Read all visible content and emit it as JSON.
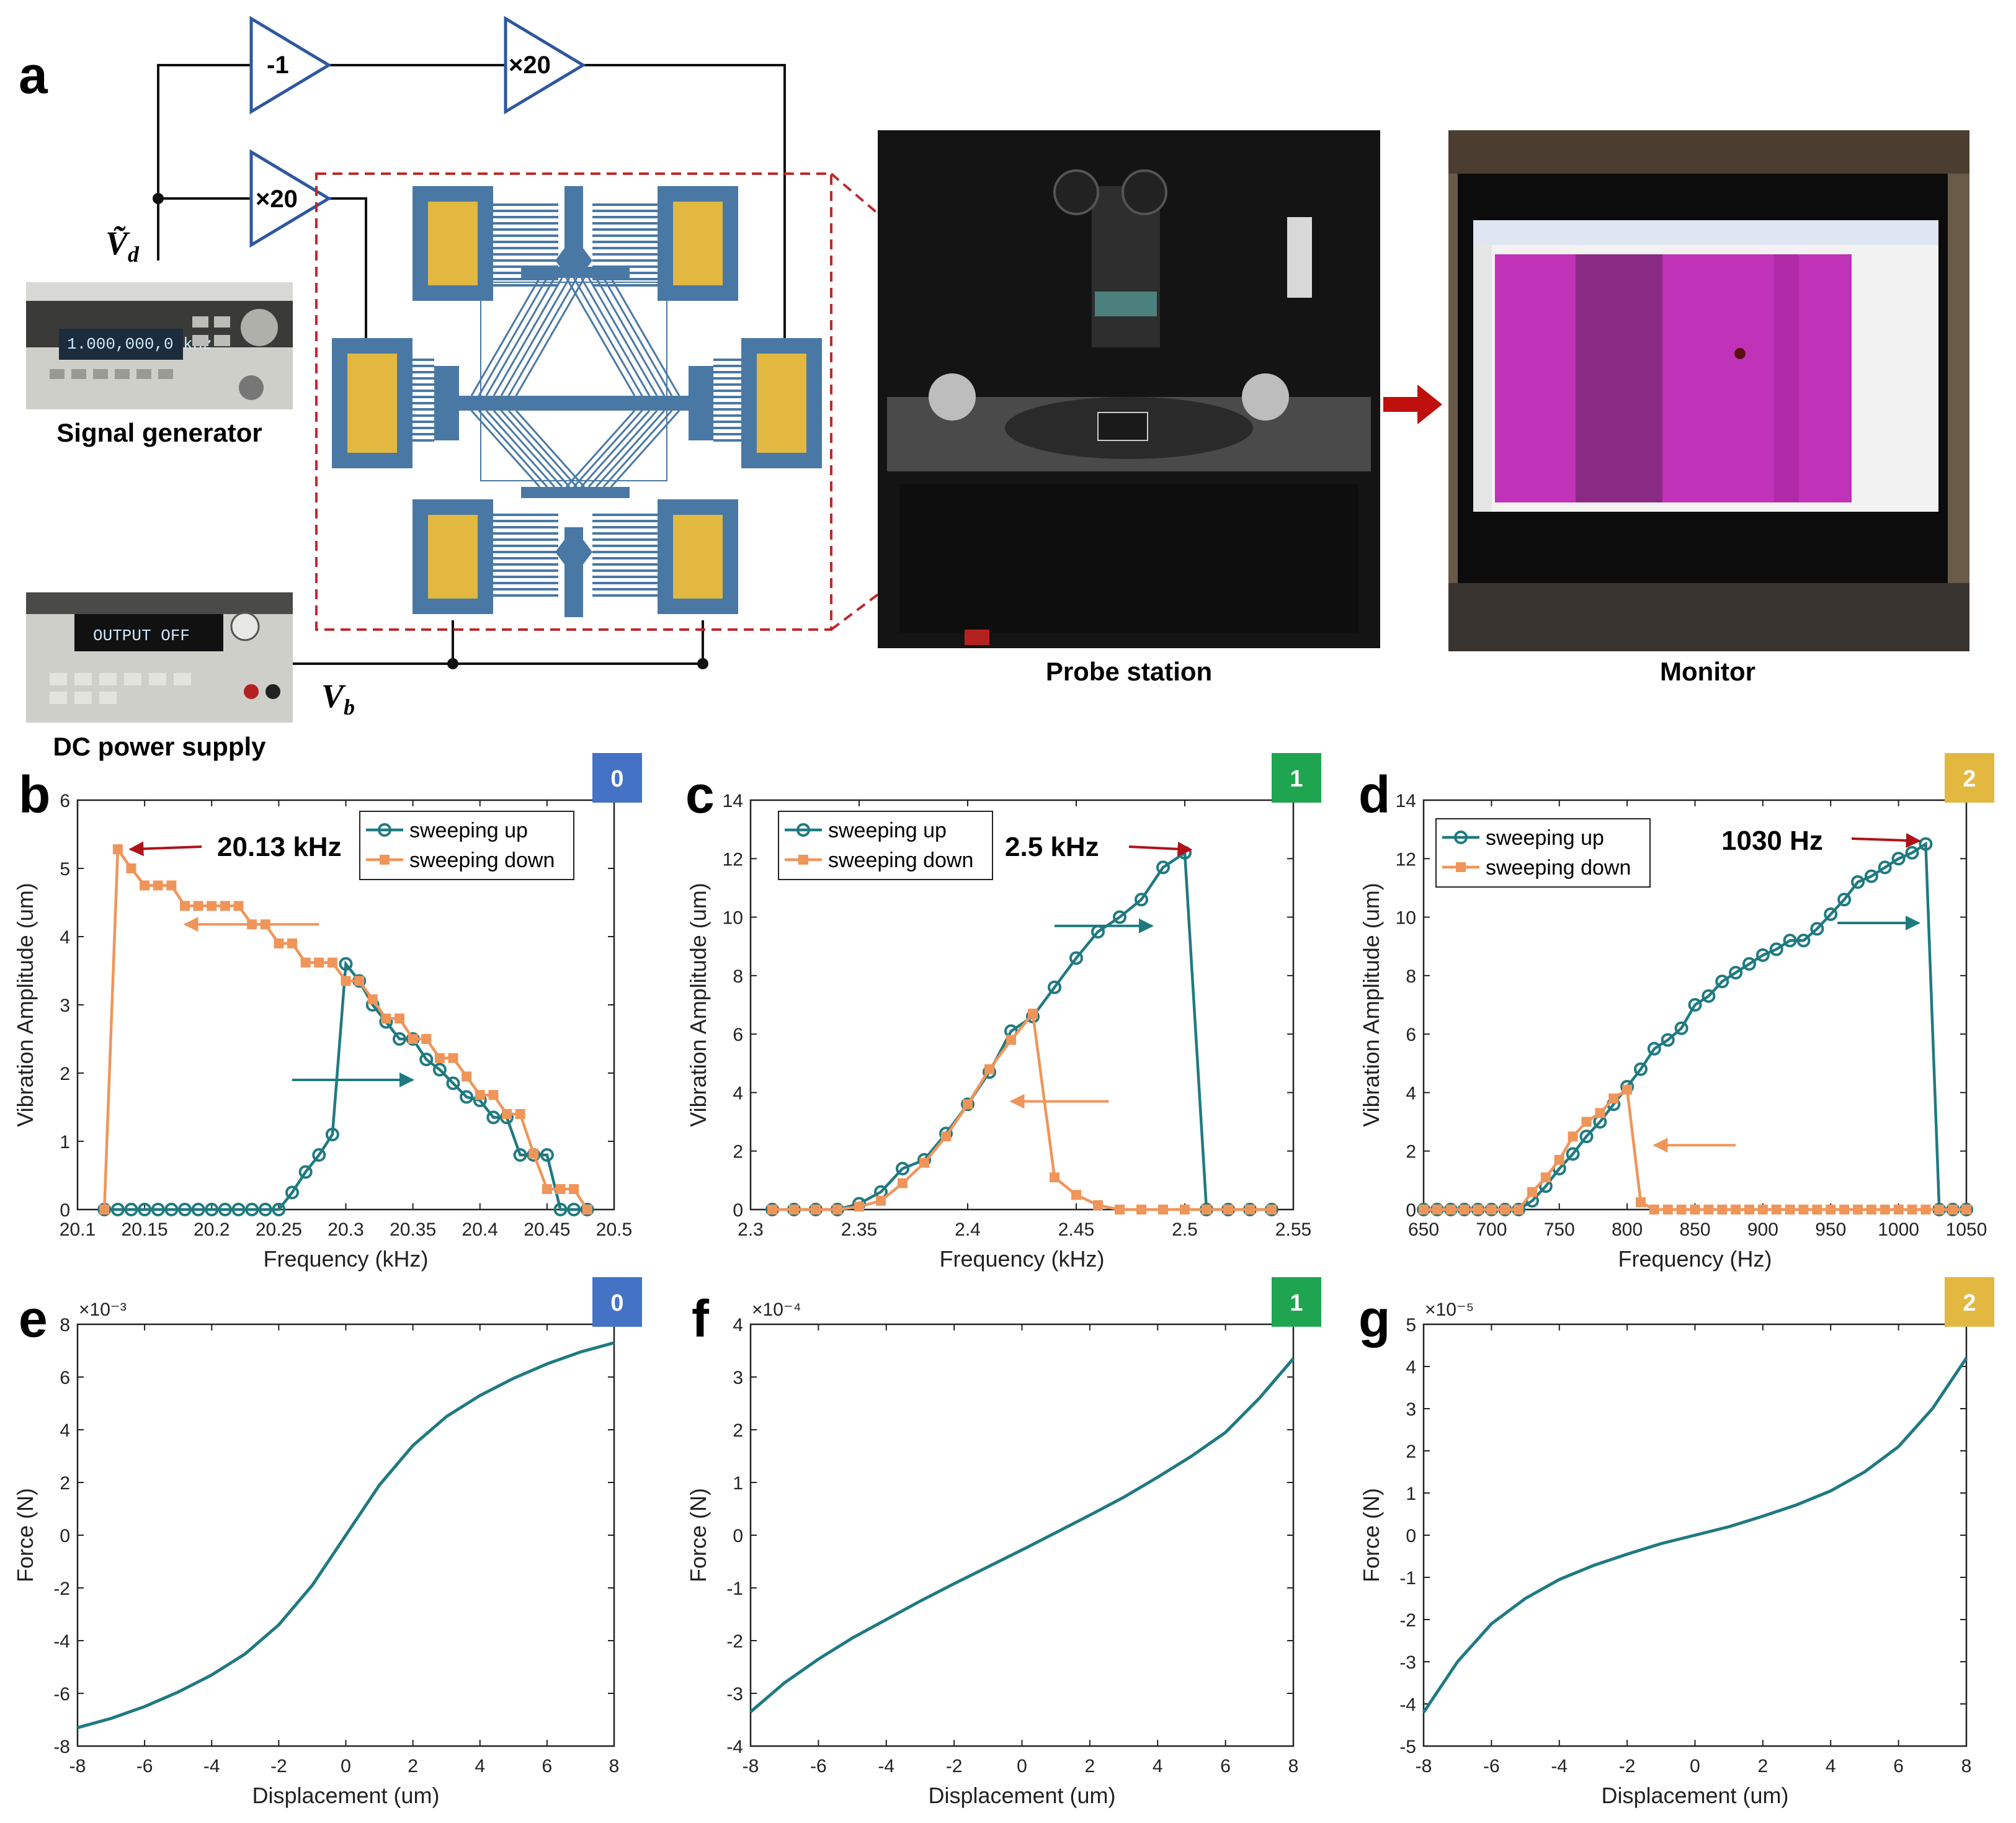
{
  "panel_letters": {
    "a": "a",
    "b": "b",
    "c": "c",
    "d": "d",
    "e": "e",
    "f": "f",
    "g": "g"
  },
  "schematic": {
    "amplifiers": {
      "invert": "-1",
      "gain_top": "×20",
      "gain_left": "×20"
    },
    "vd_symbol": "Ṽ",
    "vd_sub": "d",
    "vb_symbol": "V",
    "vb_sub": "b",
    "signal_generator": "Signal generator",
    "dc_power_supply": "DC power supply",
    "signal_gen_display": "1.000,000,0 kHz",
    "dc_display": "OUTPUT OFF",
    "probe_station": "Probe station",
    "monitor": "Monitor",
    "colors": {
      "electrode": "#4a78a4",
      "pad": "#e2b840",
      "amp": "#2e57a0",
      "dash": "#c0282c",
      "arrow": "#c0100e"
    }
  },
  "badges": {
    "b": "0",
    "c": "1",
    "d": "2",
    "e": "0",
    "f": "1",
    "g": "2"
  },
  "badge_colors": {
    "0": "#4472c4",
    "1": "#1fa550",
    "2": "#e2b840"
  },
  "series_colors": {
    "up": "#1f7a80",
    "down": "#f0955a",
    "annot_arrow": "#b0121a"
  },
  "chart_data": [
    {
      "id": "b",
      "type": "line",
      "xlabel": "Frequency (kHz)",
      "ylabel": "Vibration Amplitude (um)",
      "xlim": [
        20.1,
        20.5
      ],
      "ylim": [
        0,
        6
      ],
      "xticks": [
        20.1,
        20.15,
        20.2,
        20.25,
        20.3,
        20.35,
        20.4,
        20.45,
        20.5
      ],
      "xtick_labels": [
        "20.1",
        "20.15",
        "20.2",
        "20.25",
        "20.3",
        "20.35",
        "20.4",
        "20.45",
        "20.5"
      ],
      "yticks": [
        0,
        1,
        2,
        3,
        4,
        5,
        6
      ],
      "ytick_labels": [
        "0",
        "1",
        "2",
        "3",
        "4",
        "5",
        "6"
      ],
      "legend": [
        "sweeping up",
        "sweeping down"
      ],
      "annotation": "20.13 kHz",
      "series": [
        {
          "name": "sweeping up",
          "x": [
            20.12,
            20.13,
            20.14,
            20.15,
            20.16,
            20.17,
            20.18,
            20.19,
            20.2,
            20.21,
            20.22,
            20.23,
            20.24,
            20.25,
            20.26,
            20.27,
            20.28,
            20.29,
            20.3,
            20.31,
            20.32,
            20.33,
            20.34,
            20.35,
            20.36,
            20.37,
            20.38,
            20.39,
            20.4,
            20.41,
            20.42,
            20.43,
            20.44,
            20.45,
            20.46,
            20.47,
            20.48
          ],
          "y": [
            0,
            0,
            0,
            0,
            0,
            0,
            0,
            0,
            0,
            0,
            0,
            0,
            0,
            0,
            0.25,
            0.55,
            0.8,
            1.1,
            3.6,
            3.35,
            3.0,
            2.75,
            2.5,
            2.5,
            2.2,
            2.05,
            1.85,
            1.65,
            1.6,
            1.35,
            1.35,
            0.8,
            0.8,
            0.8,
            0,
            0,
            0
          ]
        },
        {
          "name": "sweeping down",
          "x": [
            20.12,
            20.13,
            20.14,
            20.15,
            20.16,
            20.17,
            20.18,
            20.19,
            20.2,
            20.21,
            20.22,
            20.23,
            20.24,
            20.25,
            20.26,
            20.27,
            20.28,
            20.29,
            20.3,
            20.31,
            20.32,
            20.33,
            20.34,
            20.35,
            20.36,
            20.37,
            20.38,
            20.39,
            20.4,
            20.41,
            20.42,
            20.43,
            20.44,
            20.45,
            20.46,
            20.47,
            20.48
          ],
          "y": [
            0,
            5.28,
            5.0,
            4.75,
            4.75,
            4.75,
            4.45,
            4.45,
            4.45,
            4.45,
            4.45,
            4.18,
            4.18,
            3.9,
            3.9,
            3.62,
            3.62,
            3.62,
            3.35,
            3.35,
            3.08,
            2.8,
            2.8,
            2.5,
            2.5,
            2.22,
            2.22,
            1.95,
            1.68,
            1.68,
            1.4,
            1.4,
            0.82,
            0.3,
            0.3,
            0.3,
            0
          ]
        }
      ]
    },
    {
      "id": "c",
      "type": "line",
      "xlabel": "Frequency (kHz)",
      "ylabel": "Vibration Amplitude (um)",
      "xlim": [
        2.3,
        2.55
      ],
      "ylim": [
        0,
        14
      ],
      "xticks": [
        2.3,
        2.35,
        2.4,
        2.45,
        2.5,
        2.55
      ],
      "xtick_labels": [
        "2.3",
        "2.35",
        "2.4",
        "2.45",
        "2.5",
        "2.55"
      ],
      "yticks": [
        0,
        2,
        4,
        6,
        8,
        10,
        12,
        14
      ],
      "ytick_labels": [
        "0",
        "2",
        "4",
        "6",
        "8",
        "10",
        "12",
        "14"
      ],
      "legend": [
        "sweeping up",
        "sweeping down"
      ],
      "annotation": "2.5 kHz",
      "series": [
        {
          "name": "sweeping up",
          "x": [
            2.31,
            2.32,
            2.33,
            2.34,
            2.35,
            2.36,
            2.37,
            2.38,
            2.39,
            2.4,
            2.41,
            2.42,
            2.43,
            2.44,
            2.45,
            2.46,
            2.47,
            2.48,
            2.49,
            2.5,
            2.51,
            2.52,
            2.53,
            2.54
          ],
          "y": [
            0,
            0,
            0,
            0,
            0.2,
            0.6,
            1.4,
            1.7,
            2.6,
            3.6,
            4.7,
            6.1,
            6.6,
            7.6,
            8.6,
            9.5,
            10.0,
            10.6,
            11.7,
            12.2,
            0,
            0,
            0,
            0
          ]
        },
        {
          "name": "sweeping down",
          "x": [
            2.31,
            2.32,
            2.33,
            2.34,
            2.35,
            2.36,
            2.37,
            2.38,
            2.39,
            2.4,
            2.41,
            2.42,
            2.43,
            2.44,
            2.45,
            2.46,
            2.47,
            2.48,
            2.49,
            2.5,
            2.51,
            2.52,
            2.53,
            2.54
          ],
          "y": [
            0,
            0,
            0,
            0,
            0.1,
            0.3,
            0.9,
            1.6,
            2.5,
            3.6,
            4.8,
            5.8,
            6.7,
            1.1,
            0.5,
            0.15,
            0,
            0,
            0,
            0,
            0,
            0,
            0,
            0
          ]
        }
      ]
    },
    {
      "id": "d",
      "type": "line",
      "xlabel": "Frequency (Hz)",
      "ylabel": "Vibration Amplitude (um)",
      "xlim": [
        650,
        1050
      ],
      "ylim": [
        0,
        14
      ],
      "xticks": [
        650,
        700,
        750,
        800,
        850,
        900,
        950,
        1000,
        1050
      ],
      "xtick_labels": [
        "650",
        "700",
        "750",
        "800",
        "850",
        "900",
        "950",
        "1000",
        "1050"
      ],
      "yticks": [
        0,
        2,
        4,
        6,
        8,
        10,
        12,
        14
      ],
      "ytick_labels": [
        "0",
        "2",
        "4",
        "6",
        "8",
        "10",
        "12",
        "14"
      ],
      "legend": [
        "sweeping up",
        "sweeping down"
      ],
      "annotation": "1030 Hz",
      "series": [
        {
          "name": "sweeping up",
          "x": [
            650,
            660,
            670,
            680,
            690,
            700,
            710,
            720,
            730,
            740,
            750,
            760,
            770,
            780,
            790,
            800,
            810,
            820,
            830,
            840,
            850,
            860,
            870,
            880,
            890,
            900,
            910,
            920,
            930,
            940,
            950,
            960,
            970,
            980,
            990,
            1000,
            1010,
            1020,
            1030,
            1040,
            1050
          ],
          "y": [
            0,
            0,
            0,
            0,
            0,
            0,
            0,
            0,
            0.3,
            0.8,
            1.4,
            1.9,
            2.5,
            3.0,
            3.6,
            4.2,
            4.8,
            5.5,
            5.8,
            6.2,
            7.0,
            7.3,
            7.8,
            8.1,
            8.4,
            8.7,
            8.9,
            9.2,
            9.2,
            9.6,
            10.1,
            10.6,
            11.2,
            11.4,
            11.7,
            12.0,
            12.2,
            12.5,
            0,
            0,
            0
          ]
        },
        {
          "name": "sweeping down",
          "x": [
            650,
            660,
            670,
            680,
            690,
            700,
            710,
            720,
            730,
            740,
            750,
            760,
            770,
            780,
            790,
            800,
            810,
            820,
            830,
            840,
            850,
            860,
            870,
            880,
            890,
            900,
            910,
            920,
            930,
            940,
            950,
            960,
            970,
            980,
            990,
            1000,
            1010,
            1020,
            1030,
            1040,
            1050
          ],
          "y": [
            0,
            0,
            0,
            0,
            0,
            0,
            0,
            0,
            0.6,
            1.1,
            1.7,
            2.5,
            3.0,
            3.3,
            3.8,
            4.1,
            0.25,
            0,
            0,
            0,
            0,
            0,
            0,
            0,
            0,
            0,
            0,
            0,
            0,
            0,
            0,
            0,
            0,
            0,
            0,
            0,
            0,
            0,
            0,
            0,
            0
          ]
        }
      ]
    },
    {
      "id": "e",
      "type": "line",
      "xlabel": "Displacement (um)",
      "ylabel": "Force (N)",
      "xlim": [
        -8,
        8
      ],
      "ylim": [
        -8,
        8
      ],
      "exponent": "×10⁻³",
      "xticks": [
        -8,
        -6,
        -4,
        -2,
        0,
        2,
        4,
        6,
        8
      ],
      "xtick_labels": [
        "-8",
        "-6",
        "-4",
        "-2",
        "0",
        "2",
        "4",
        "6",
        "8"
      ],
      "yticks": [
        -8,
        -6,
        -4,
        -2,
        0,
        2,
        4,
        6,
        8
      ],
      "ytick_labels": [
        "-8",
        "-6",
        "-4",
        "-2",
        "0",
        "2",
        "4",
        "6",
        "8"
      ],
      "series": [
        {
          "x": [
            -8,
            -7,
            -6,
            -5,
            -4,
            -3,
            -2,
            -1,
            0,
            1,
            2,
            3,
            4,
            5,
            6,
            7,
            8
          ],
          "y": [
            -7.3,
            -6.95,
            -6.5,
            -5.95,
            -5.3,
            -4.5,
            -3.4,
            -1.9,
            0,
            1.9,
            3.4,
            4.5,
            5.3,
            5.95,
            6.5,
            6.95,
            7.3
          ]
        }
      ]
    },
    {
      "id": "f",
      "type": "line",
      "xlabel": "Displacement (um)",
      "ylabel": "Force (N)",
      "xlim": [
        -8,
        8
      ],
      "ylim": [
        -4,
        4
      ],
      "exponent": "×10⁻⁴",
      "xticks": [
        -8,
        -6,
        -4,
        -2,
        0,
        2,
        4,
        6,
        8
      ],
      "xtick_labels": [
        "-8",
        "-6",
        "-4",
        "-2",
        "0",
        "2",
        "4",
        "6",
        "8"
      ],
      "yticks": [
        -4,
        -3,
        -2,
        -1,
        0,
        1,
        2,
        3,
        4
      ],
      "ytick_labels": [
        "-4",
        "-3",
        "-2",
        "-1",
        "0",
        "1",
        "2",
        "3",
        "4"
      ],
      "series": [
        {
          "x": [
            -8,
            -7,
            -6,
            -5,
            -4,
            -3,
            -2,
            -1,
            0,
            1,
            2,
            3,
            4,
            5,
            6,
            7,
            8
          ],
          "y": [
            -3.35,
            -2.8,
            -2.35,
            -1.95,
            -1.6,
            -1.25,
            -0.92,
            -0.6,
            -0.28,
            0.05,
            0.38,
            0.72,
            1.1,
            1.5,
            1.95,
            2.6,
            3.35
          ]
        }
      ]
    },
    {
      "id": "g",
      "type": "line",
      "xlabel": "Displacement (um)",
      "ylabel": "Force (N)",
      "xlim": [
        -8,
        8
      ],
      "ylim": [
        -5,
        5
      ],
      "exponent": "×10⁻⁵",
      "xticks": [
        -8,
        -6,
        -4,
        -2,
        0,
        2,
        4,
        6,
        8
      ],
      "xtick_labels": [
        "-8",
        "-6",
        "-4",
        "-2",
        "0",
        "2",
        "4",
        "6",
        "8"
      ],
      "yticks": [
        -5,
        -4,
        -3,
        -2,
        -1,
        0,
        1,
        2,
        3,
        4,
        5
      ],
      "ytick_labels": [
        "-5",
        "-4",
        "-3",
        "-2",
        "-1",
        "0",
        "1",
        "2",
        "3",
        "4",
        "5"
      ],
      "series": [
        {
          "x": [
            -8,
            -7,
            -6,
            -5,
            -4,
            -3,
            -2,
            -1,
            0,
            1,
            2,
            3,
            4,
            5,
            6,
            7,
            8
          ],
          "y": [
            -4.2,
            -3.0,
            -2.1,
            -1.5,
            -1.05,
            -0.72,
            -0.45,
            -0.2,
            0,
            0.2,
            0.45,
            0.72,
            1.05,
            1.5,
            2.1,
            3.0,
            4.2
          ]
        }
      ]
    }
  ]
}
